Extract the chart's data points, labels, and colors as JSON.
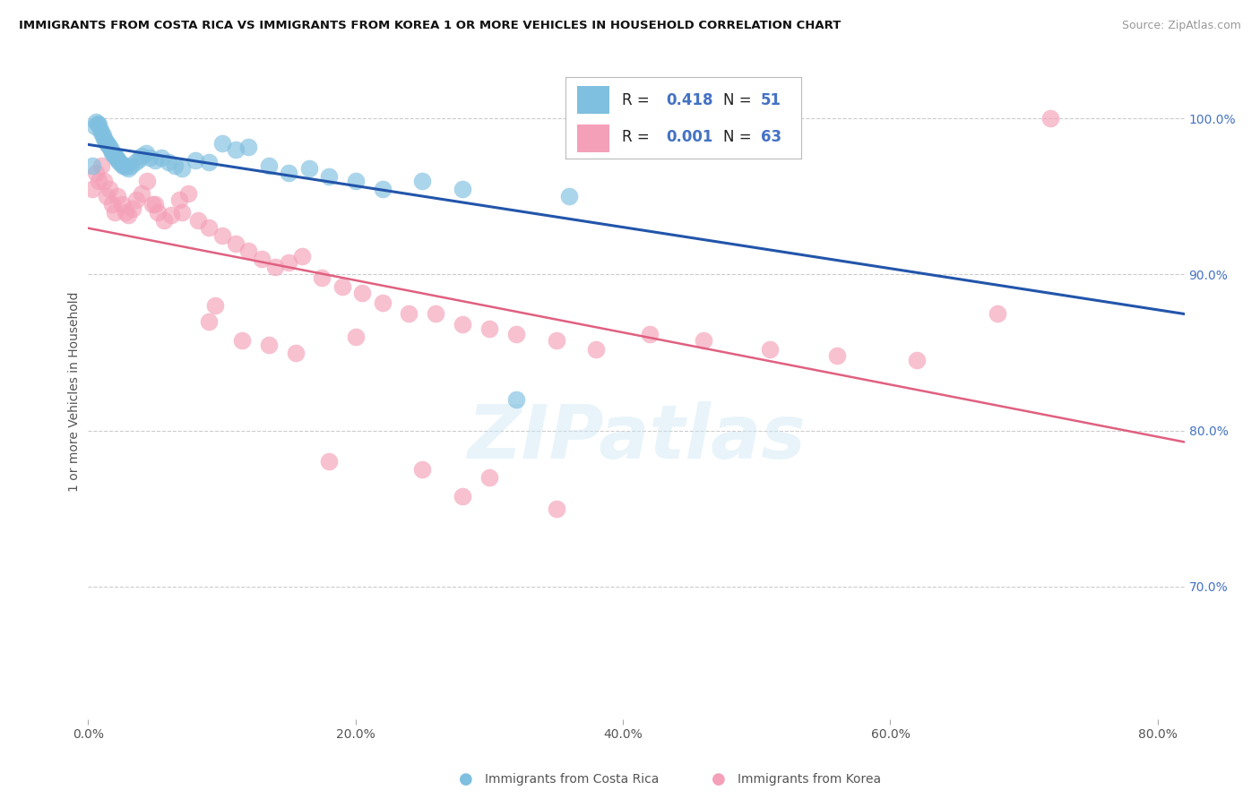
{
  "title": "IMMIGRANTS FROM COSTA RICA VS IMMIGRANTS FROM KOREA 1 OR MORE VEHICLES IN HOUSEHOLD CORRELATION CHART",
  "source": "Source: ZipAtlas.com",
  "ylabel": "1 or more Vehicles in Household",
  "legend_label_1": "Immigrants from Costa Rica",
  "legend_label_2": "Immigrants from Korea",
  "R1": "0.418",
  "N1": "51",
  "R2": "0.001",
  "N2": "63",
  "color_blue": "#7fbfdf",
  "color_pink": "#f4a0b8",
  "color_trend_blue": "#2255aa",
  "color_trend_pink": "#e06080",
  "background_color": "#ffffff",
  "grid_color": "#cccccc",
  "xlim": [
    0.0,
    0.82
  ],
  "ylim": [
    0.615,
    1.035
  ],
  "x_ticks": [
    0.0,
    0.2,
    0.4,
    0.6,
    0.8
  ],
  "x_tick_labels": [
    "0.0%",
    "20.0%",
    "40.0%",
    "60.0%",
    "80.0%"
  ],
  "y_ticks": [
    0.7,
    0.8,
    0.9,
    1.0
  ],
  "y_tick_labels": [
    "70.0%",
    "80.0%",
    "90.0%",
    "100.0%"
  ],
  "cr_x": [
    0.003,
    0.005,
    0.006,
    0.007,
    0.008,
    0.009,
    0.01,
    0.011,
    0.012,
    0.013,
    0.014,
    0.015,
    0.016,
    0.017,
    0.018,
    0.019,
    0.02,
    0.021,
    0.022,
    0.023,
    0.025,
    0.026,
    0.028,
    0.03,
    0.032,
    0.035,
    0.038,
    0.04,
    0.043,
    0.046,
    0.05,
    0.055,
    0.06,
    0.065,
    0.07,
    0.08,
    0.09,
    0.1,
    0.11,
    0.12,
    0.135,
    0.15,
    0.165,
    0.18,
    0.2,
    0.22,
    0.25,
    0.28,
    0.32,
    0.36,
    0.4
  ],
  "cr_y": [
    0.97,
    0.995,
    0.998,
    0.997,
    0.996,
    0.993,
    0.991,
    0.989,
    0.987,
    0.985,
    0.984,
    0.983,
    0.982,
    0.98,
    0.978,
    0.977,
    0.976,
    0.975,
    0.974,
    0.972,
    0.971,
    0.97,
    0.969,
    0.968,
    0.97,
    0.972,
    0.974,
    0.976,
    0.978,
    0.975,
    0.973,
    0.975,
    0.972,
    0.97,
    0.968,
    0.973,
    0.972,
    0.984,
    0.98,
    0.982,
    0.97,
    0.965,
    0.968,
    0.963,
    0.96,
    0.955,
    0.96,
    0.955,
    0.82,
    0.95,
    0.99
  ],
  "ko_x": [
    0.003,
    0.006,
    0.008,
    0.01,
    0.012,
    0.014,
    0.016,
    0.018,
    0.02,
    0.022,
    0.025,
    0.028,
    0.03,
    0.033,
    0.036,
    0.04,
    0.044,
    0.048,
    0.052,
    0.057,
    0.062,
    0.068,
    0.075,
    0.082,
    0.09,
    0.1,
    0.11,
    0.12,
    0.13,
    0.14,
    0.15,
    0.16,
    0.175,
    0.19,
    0.205,
    0.22,
    0.24,
    0.26,
    0.28,
    0.3,
    0.32,
    0.35,
    0.38,
    0.42,
    0.46,
    0.51,
    0.56,
    0.62,
    0.68,
    0.72,
    0.05,
    0.07,
    0.095,
    0.115,
    0.135,
    0.155,
    0.2,
    0.25,
    0.3,
    0.35,
    0.28,
    0.18,
    0.09
  ],
  "ko_y": [
    0.955,
    0.965,
    0.96,
    0.97,
    0.96,
    0.95,
    0.955,
    0.945,
    0.94,
    0.95,
    0.945,
    0.94,
    0.938,
    0.942,
    0.948,
    0.952,
    0.96,
    0.945,
    0.94,
    0.935,
    0.938,
    0.948,
    0.952,
    0.935,
    0.93,
    0.925,
    0.92,
    0.915,
    0.91,
    0.905,
    0.908,
    0.912,
    0.898,
    0.892,
    0.888,
    0.882,
    0.875,
    0.875,
    0.868,
    0.865,
    0.862,
    0.858,
    0.852,
    0.862,
    0.858,
    0.852,
    0.848,
    0.845,
    0.875,
    1.0,
    0.945,
    0.94,
    0.88,
    0.858,
    0.855,
    0.85,
    0.86,
    0.775,
    0.77,
    0.75,
    0.758,
    0.78,
    0.87
  ]
}
